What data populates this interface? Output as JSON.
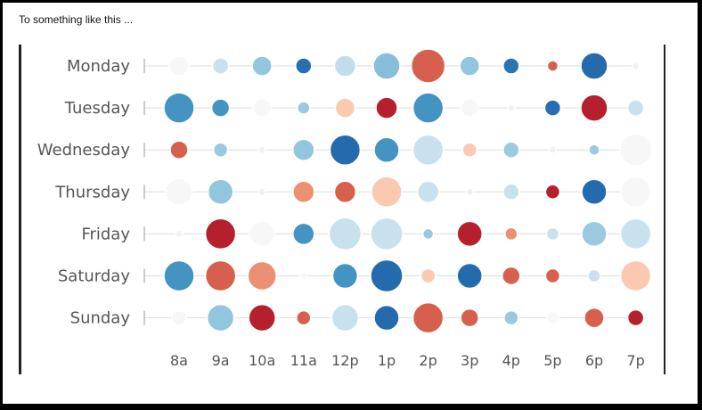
{
  "caption": "To something like this ...",
  "chart_data": {
    "type": "scatter",
    "title": "",
    "xlabel": "",
    "ylabel": "",
    "x_categories": [
      "8a",
      "9a",
      "10a",
      "11a",
      "12p",
      "1p",
      "2p",
      "3p",
      "4p",
      "5p",
      "6p",
      "7p"
    ],
    "y_categories": [
      "Monday",
      "Tuesday",
      "Wednesday",
      "Thursday",
      "Friday",
      "Saturday",
      "Sunday"
    ],
    "grid": true,
    "legend": "none",
    "color_scale": {
      "low": "#b2182b",
      "mid": "#f7f7f7",
      "high": "#2166ac",
      "values": [
        -3,
        0,
        3
      ]
    },
    "points": [
      {
        "day": "Monday",
        "hour": "8a",
        "size": 0.55,
        "color_value": 0
      },
      {
        "day": "Monday",
        "hour": "9a",
        "size": 0.45,
        "color_value": 0.6
      },
      {
        "day": "Monday",
        "hour": "10a",
        "size": 0.55,
        "color_value": 1.3
      },
      {
        "day": "Monday",
        "hour": "11a",
        "size": 0.45,
        "color_value": 2.8
      },
      {
        "day": "Monday",
        "hour": "12p",
        "size": 0.6,
        "color_value": 0.7
      },
      {
        "day": "Monday",
        "hour": "1p",
        "size": 0.75,
        "color_value": 1.4
      },
      {
        "day": "Monday",
        "hour": "2p",
        "size": 0.95,
        "color_value": -2.0
      },
      {
        "day": "Monday",
        "hour": "3p",
        "size": 0.55,
        "color_value": 1.3
      },
      {
        "day": "Monday",
        "hour": "4p",
        "size": 0.45,
        "color_value": 2.7
      },
      {
        "day": "Monday",
        "hour": "5p",
        "size": 0.3,
        "color_value": -2.0
      },
      {
        "day": "Monday",
        "hour": "6p",
        "size": 0.75,
        "color_value": 2.9
      },
      {
        "day": "Monday",
        "hour": "7p",
        "size": 0.2,
        "color_value": 0.15
      },
      {
        "day": "Tuesday",
        "hour": "8a",
        "size": 0.85,
        "color_value": 2.0
      },
      {
        "day": "Tuesday",
        "hour": "9a",
        "size": 0.5,
        "color_value": 2.0
      },
      {
        "day": "Tuesday",
        "hour": "10a",
        "size": 0.5,
        "color_value": 0
      },
      {
        "day": "Tuesday",
        "hour": "11a",
        "size": 0.35,
        "color_value": 1.2
      },
      {
        "day": "Tuesday",
        "hour": "12p",
        "size": 0.55,
        "color_value": -0.6
      },
      {
        "day": "Tuesday",
        "hour": "1p",
        "size": 0.6,
        "color_value": -2.9
      },
      {
        "day": "Tuesday",
        "hour": "2p",
        "size": 0.85,
        "color_value": 2.0
      },
      {
        "day": "Tuesday",
        "hour": "3p",
        "size": 0.5,
        "color_value": 0
      },
      {
        "day": "Tuesday",
        "hour": "4p",
        "size": 0.2,
        "color_value": 0.15
      },
      {
        "day": "Tuesday",
        "hour": "5p",
        "size": 0.45,
        "color_value": 2.8
      },
      {
        "day": "Tuesday",
        "hour": "6p",
        "size": 0.75,
        "color_value": -2.9
      },
      {
        "day": "Tuesday",
        "hour": "7p",
        "size": 0.45,
        "color_value": 0.6
      },
      {
        "day": "Wednesday",
        "hour": "8a",
        "size": 0.5,
        "color_value": -2.0
      },
      {
        "day": "Wednesday",
        "hour": "9a",
        "size": 0.4,
        "color_value": 1.2
      },
      {
        "day": "Wednesday",
        "hour": "10a",
        "size": 0.2,
        "color_value": 0.15
      },
      {
        "day": "Wednesday",
        "hour": "11a",
        "size": 0.6,
        "color_value": 1.3
      },
      {
        "day": "Wednesday",
        "hour": "12p",
        "size": 0.85,
        "color_value": 2.9
      },
      {
        "day": "Wednesday",
        "hour": "1p",
        "size": 0.7,
        "color_value": 2.0
      },
      {
        "day": "Wednesday",
        "hour": "2p",
        "size": 0.85,
        "color_value": 0.6
      },
      {
        "day": "Wednesday",
        "hour": "3p",
        "size": 0.4,
        "color_value": -0.6
      },
      {
        "day": "Wednesday",
        "hour": "4p",
        "size": 0.45,
        "color_value": 1.2
      },
      {
        "day": "Wednesday",
        "hour": "5p",
        "size": 0.2,
        "color_value": 0.1
      },
      {
        "day": "Wednesday",
        "hour": "6p",
        "size": 0.3,
        "color_value": 1.2
      },
      {
        "day": "Wednesday",
        "hour": "7p",
        "size": 0.9,
        "color_value": 0
      },
      {
        "day": "Thursday",
        "hour": "8a",
        "size": 0.75,
        "color_value": 0
      },
      {
        "day": "Thursday",
        "hour": "9a",
        "size": 0.7,
        "color_value": 1.3
      },
      {
        "day": "Thursday",
        "hour": "10a",
        "size": 0.2,
        "color_value": 0.15
      },
      {
        "day": "Thursday",
        "hour": "11a",
        "size": 0.6,
        "color_value": -1.3
      },
      {
        "day": "Thursday",
        "hour": "12p",
        "size": 0.6,
        "color_value": -2.0
      },
      {
        "day": "Thursday",
        "hour": "1p",
        "size": 0.85,
        "color_value": -0.6
      },
      {
        "day": "Thursday",
        "hour": "2p",
        "size": 0.6,
        "color_value": 0.6
      },
      {
        "day": "Thursday",
        "hour": "3p",
        "size": 0.2,
        "color_value": 0.15
      },
      {
        "day": "Thursday",
        "hour": "4p",
        "size": 0.45,
        "color_value": 0.6
      },
      {
        "day": "Thursday",
        "hour": "5p",
        "size": 0.4,
        "color_value": -2.9
      },
      {
        "day": "Thursday",
        "hour": "6p",
        "size": 0.7,
        "color_value": 2.9
      },
      {
        "day": "Thursday",
        "hour": "7p",
        "size": 0.85,
        "color_value": 0
      },
      {
        "day": "Friday",
        "hour": "8a",
        "size": 0.2,
        "color_value": 0.15
      },
      {
        "day": "Friday",
        "hour": "9a",
        "size": 0.85,
        "color_value": -2.9
      },
      {
        "day": "Friday",
        "hour": "10a",
        "size": 0.7,
        "color_value": 0
      },
      {
        "day": "Friday",
        "hour": "11a",
        "size": 0.6,
        "color_value": 2.0
      },
      {
        "day": "Friday",
        "hour": "12p",
        "size": 0.9,
        "color_value": 0.6
      },
      {
        "day": "Friday",
        "hour": "1p",
        "size": 0.9,
        "color_value": 0.6
      },
      {
        "day": "Friday",
        "hour": "2p",
        "size": 0.3,
        "color_value": 1.2
      },
      {
        "day": "Friday",
        "hour": "3p",
        "size": 0.7,
        "color_value": -2.9
      },
      {
        "day": "Friday",
        "hour": "4p",
        "size": 0.35,
        "color_value": -1.3
      },
      {
        "day": "Friday",
        "hour": "5p",
        "size": 0.35,
        "color_value": 0.6
      },
      {
        "day": "Friday",
        "hour": "6p",
        "size": 0.7,
        "color_value": 1.2
      },
      {
        "day": "Friday",
        "hour": "7p",
        "size": 0.85,
        "color_value": 0.6
      },
      {
        "day": "Saturday",
        "hour": "8a",
        "size": 0.85,
        "color_value": 2.0
      },
      {
        "day": "Saturday",
        "hour": "9a",
        "size": 0.85,
        "color_value": -2.0
      },
      {
        "day": "Saturday",
        "hour": "10a",
        "size": 0.8,
        "color_value": -1.3
      },
      {
        "day": "Saturday",
        "hour": "11a",
        "size": 0.2,
        "color_value": 0
      },
      {
        "day": "Saturday",
        "hour": "12p",
        "size": 0.7,
        "color_value": 2.0
      },
      {
        "day": "Saturday",
        "hour": "1p",
        "size": 0.9,
        "color_value": 2.9
      },
      {
        "day": "Saturday",
        "hour": "2p",
        "size": 0.4,
        "color_value": -0.6
      },
      {
        "day": "Saturday",
        "hour": "3p",
        "size": 0.7,
        "color_value": 2.9
      },
      {
        "day": "Saturday",
        "hour": "4p",
        "size": 0.5,
        "color_value": -2.0
      },
      {
        "day": "Saturday",
        "hour": "5p",
        "size": 0.4,
        "color_value": -2.0
      },
      {
        "day": "Saturday",
        "hour": "6p",
        "size": 0.35,
        "color_value": 0.6
      },
      {
        "day": "Saturday",
        "hour": "7p",
        "size": 0.85,
        "color_value": -0.6
      },
      {
        "day": "Sunday",
        "hour": "8a",
        "size": 0.4,
        "color_value": 0
      },
      {
        "day": "Sunday",
        "hour": "9a",
        "size": 0.75,
        "color_value": 1.3
      },
      {
        "day": "Sunday",
        "hour": "10a",
        "size": 0.75,
        "color_value": -2.9
      },
      {
        "day": "Sunday",
        "hour": "11a",
        "size": 0.4,
        "color_value": -2.0
      },
      {
        "day": "Sunday",
        "hour": "12p",
        "size": 0.75,
        "color_value": 0.6
      },
      {
        "day": "Sunday",
        "hour": "1p",
        "size": 0.7,
        "color_value": 2.9
      },
      {
        "day": "Sunday",
        "hour": "2p",
        "size": 0.85,
        "color_value": -2.0
      },
      {
        "day": "Sunday",
        "hour": "3p",
        "size": 0.5,
        "color_value": -2.0
      },
      {
        "day": "Sunday",
        "hour": "4p",
        "size": 0.4,
        "color_value": 1.2
      },
      {
        "day": "Sunday",
        "hour": "5p",
        "size": 0.35,
        "color_value": 0
      },
      {
        "day": "Sunday",
        "hour": "6p",
        "size": 0.55,
        "color_value": -2.0
      },
      {
        "day": "Sunday",
        "hour": "7p",
        "size": 0.45,
        "color_value": -2.9
      }
    ]
  }
}
